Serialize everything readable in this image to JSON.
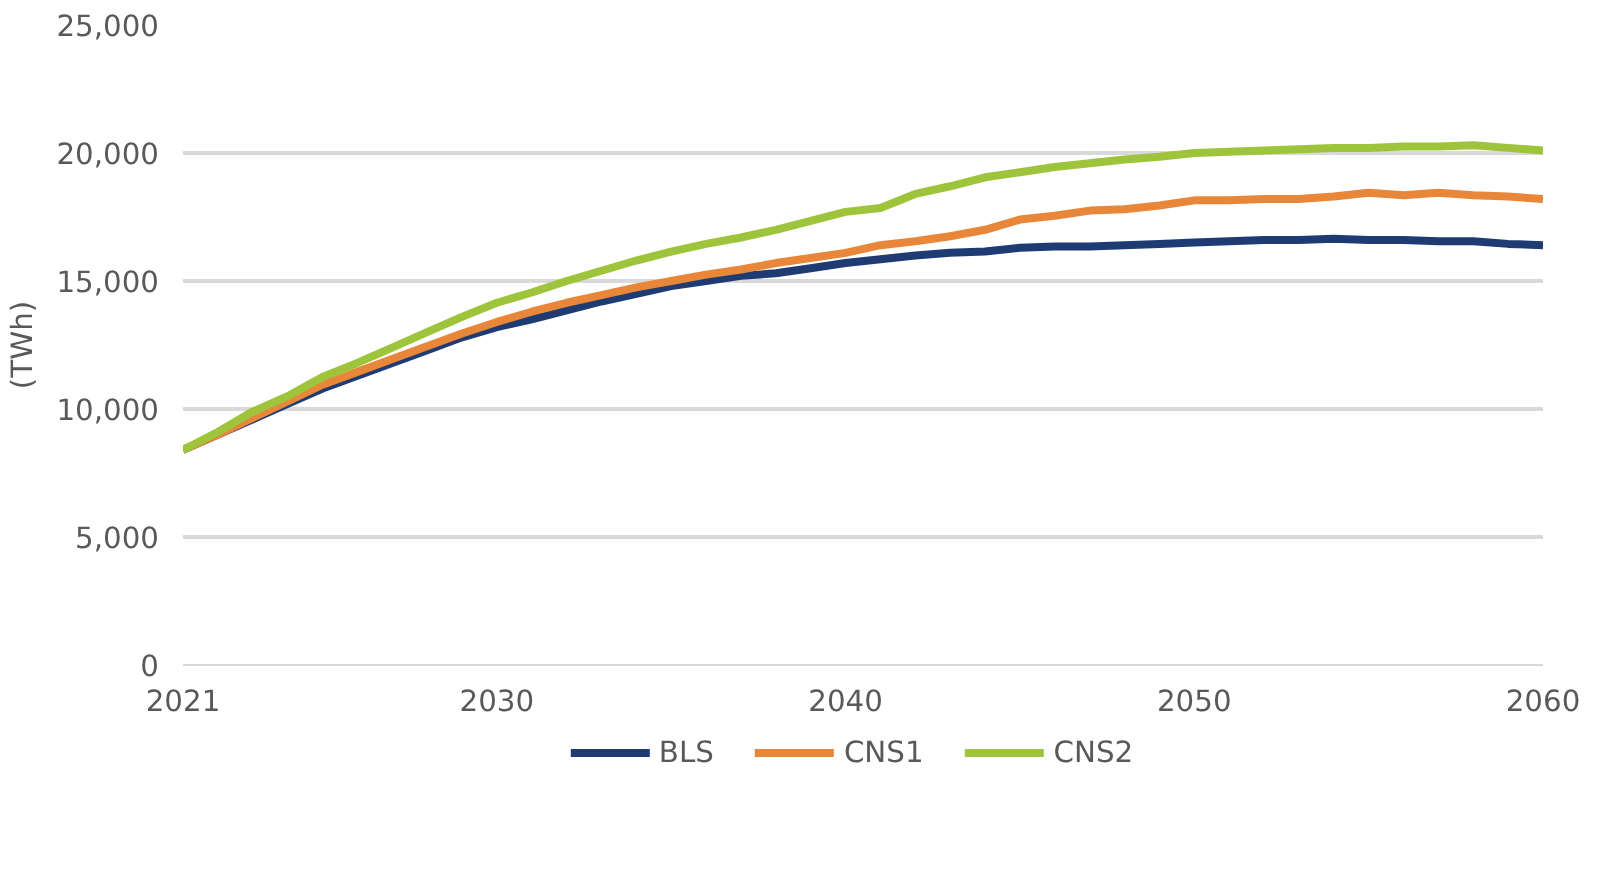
{
  "chart_data": {
    "type": "line",
    "ylabel": "(TWh)",
    "x": [
      2021,
      2022,
      2023,
      2024,
      2025,
      2026,
      2027,
      2028,
      2029,
      2030,
      2031,
      2032,
      2033,
      2034,
      2035,
      2036,
      2037,
      2038,
      2039,
      2040,
      2041,
      2042,
      2043,
      2044,
      2045,
      2046,
      2047,
      2048,
      2049,
      2050,
      2051,
      2052,
      2053,
      2054,
      2055,
      2056,
      2057,
      2058,
      2059,
      2060
    ],
    "xlim": [
      2021,
      2060
    ],
    "xticks": [
      2021,
      2030,
      2040,
      2050,
      2060
    ],
    "ylim": [
      0,
      25000
    ],
    "yticks": [
      {
        "value": 0,
        "label": "0"
      },
      {
        "value": 5000,
        "label": "5,000"
      },
      {
        "value": 10000,
        "label": "10,000"
      },
      {
        "value": 15000,
        "label": "15,000"
      },
      {
        "value": 20000,
        "label": "20,000"
      },
      {
        "value": 25000,
        "label": "25,000"
      }
    ],
    "grid": "y",
    "legend": "bottom",
    "marker": "none",
    "line_style": "solid",
    "series": [
      {
        "name": "BLS",
        "color": "#1f3b73",
        "values": [
          8400,
          9000,
          9600,
          10200,
          10800,
          11300,
          11800,
          12300,
          12800,
          13200,
          13500,
          13850,
          14200,
          14500,
          14800,
          15000,
          15200,
          15300,
          15500,
          15700,
          15850,
          16000,
          16100,
          16150,
          16300,
          16350,
          16350,
          16400,
          16450,
          16500,
          16550,
          16600,
          16600,
          16650,
          16600,
          16600,
          16550,
          16550,
          16450,
          16400
        ]
      },
      {
        "name": "CNS1",
        "color": "#e8873a",
        "values": [
          8400,
          9000,
          9650,
          10300,
          10950,
          11450,
          11950,
          12450,
          12950,
          13400,
          13800,
          14150,
          14450,
          14750,
          15000,
          15250,
          15450,
          15700,
          15900,
          16100,
          16400,
          16550,
          16750,
          17000,
          17400,
          17550,
          17750,
          17800,
          17950,
          18150,
          18150,
          18200,
          18200,
          18300,
          18450,
          18350,
          18450,
          18350,
          18300,
          18200
        ]
      },
      {
        "name": "CNS2",
        "color": "#9dc43a",
        "values": [
          8400,
          9100,
          9900,
          10500,
          11250,
          11800,
          12400,
          13000,
          13600,
          14150,
          14550,
          15000,
          15400,
          15800,
          16150,
          16450,
          16700,
          17000,
          17350,
          17700,
          17850,
          18400,
          18700,
          19050,
          19250,
          19450,
          19600,
          19750,
          19850,
          20000,
          20050,
          20100,
          20150,
          20200,
          20200,
          20250,
          20250,
          20300,
          20200,
          20100
        ]
      }
    ]
  }
}
